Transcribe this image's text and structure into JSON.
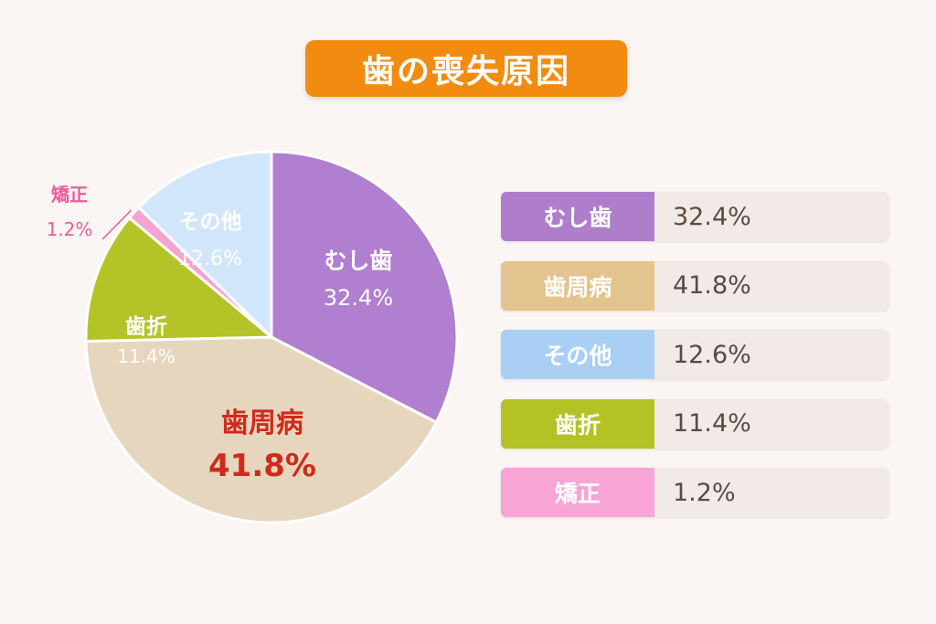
{
  "chart_data": {
    "type": "pie",
    "title": "歯の喪失原因",
    "slices": [
      {
        "label": "むし歯",
        "value": 32.4,
        "display": "32.4%",
        "color": "#b07fd0",
        "text_color": "#ffffff"
      },
      {
        "label": "歯周病",
        "value": 41.8,
        "display": "41.8%",
        "color": "#e6d6bd",
        "text_color": "#d12a1c"
      },
      {
        "label": "歯折",
        "value": 11.4,
        "display": "11.4%",
        "color": "#b4c328",
        "text_color": "#ffffff"
      },
      {
        "label": "矯正",
        "value": 1.2,
        "display": "1.2%",
        "color": "#f4a3d2",
        "text_color": "#ec5b9e"
      },
      {
        "label": "その他",
        "value": 12.6,
        "display": "12.6%",
        "color": "#d2e6fb",
        "text_color": "#ffffff"
      }
    ],
    "legend": [
      {
        "label": "むし歯",
        "display": "32.4%",
        "color": "#ae7ecb"
      },
      {
        "label": "歯周病",
        "display": "41.8%",
        "color": "#e3c48e"
      },
      {
        "label": "その他",
        "display": "12.6%",
        "color": "#a9cff4"
      },
      {
        "label": "歯折",
        "display": "11.4%",
        "color": "#b3c326"
      },
      {
        "label": "矯正",
        "display": "1.2%",
        "color": "#f6a5d5"
      }
    ],
    "legend_placement": "right"
  }
}
